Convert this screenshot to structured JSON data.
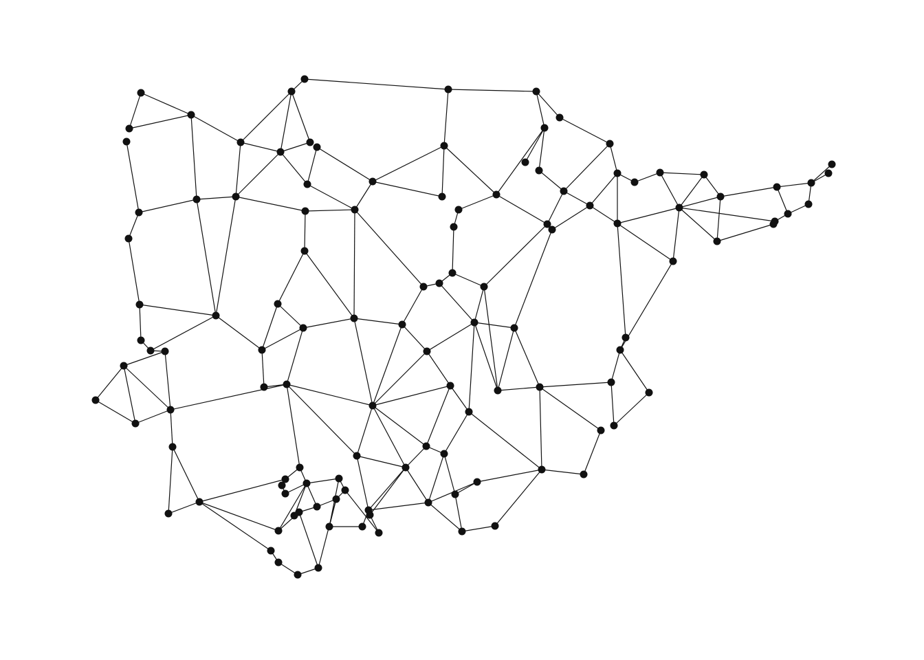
{
  "diagram": {
    "type": "network-graph",
    "node_color": "#111111",
    "edge_color": "#111111",
    "background": "#ffffff"
  }
}
